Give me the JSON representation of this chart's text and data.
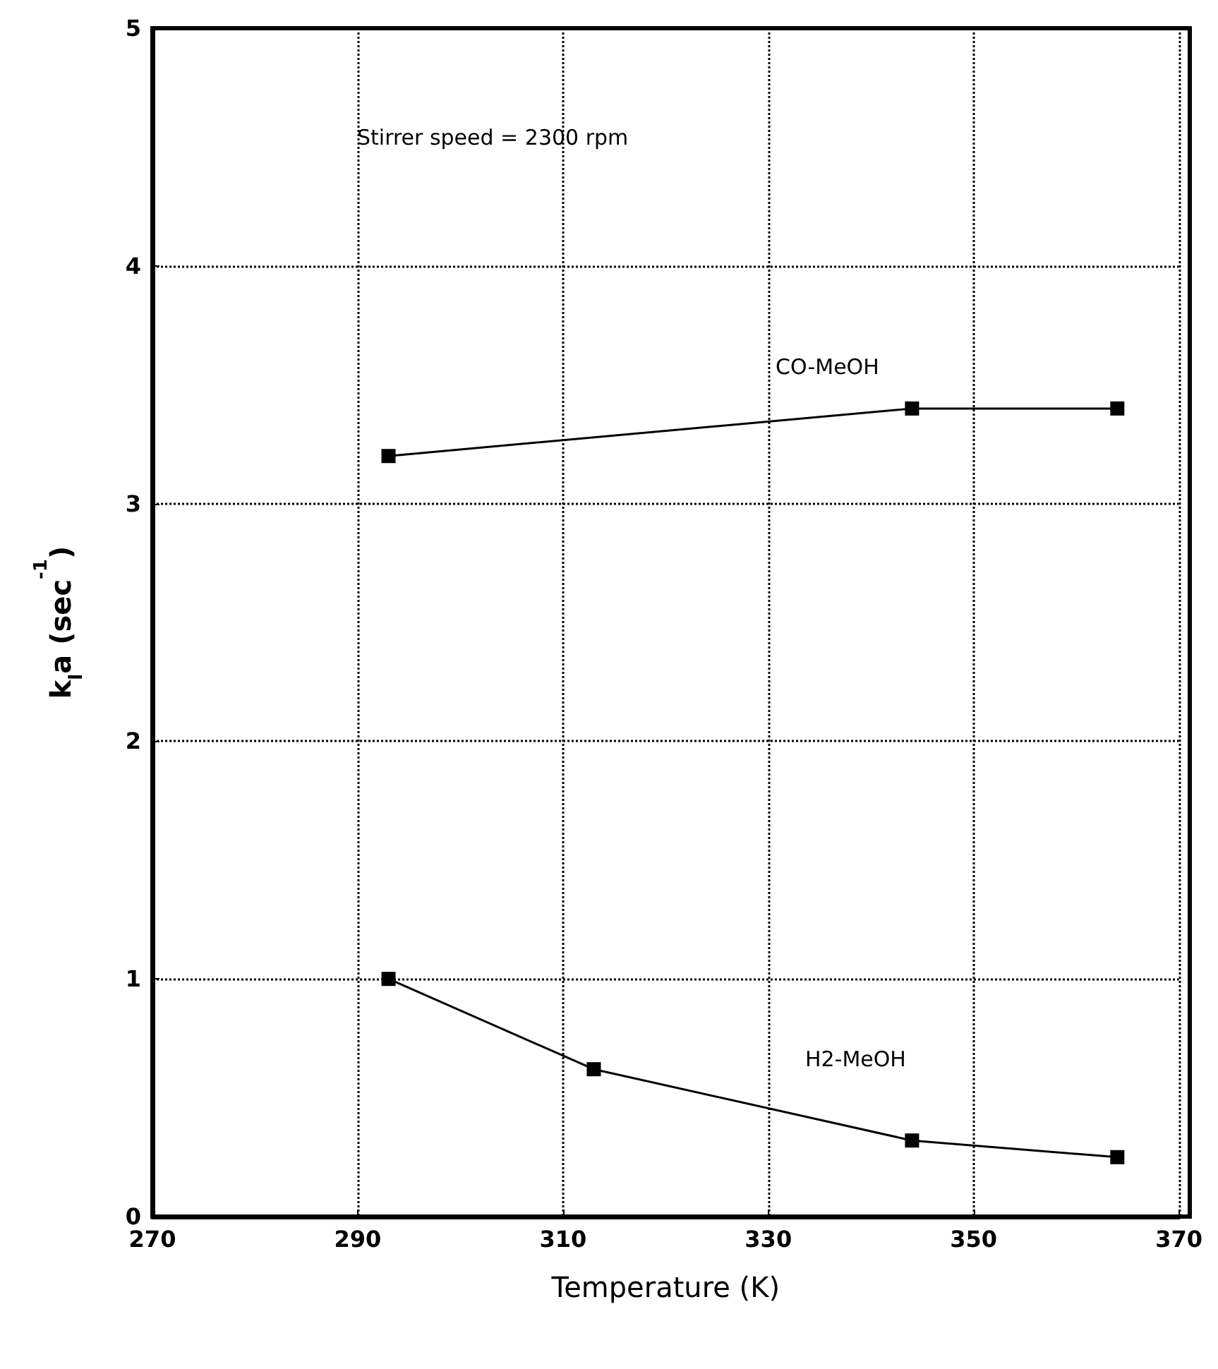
{
  "chart_data": {
    "type": "line",
    "xlabel": "Temperature (K)",
    "ylabel": "k$_{l}$a (sec$^{-1}$)",
    "annotations": [
      "Stirrer speed = 2300 rpm"
    ],
    "series": [
      {
        "name": "CO-MeOH",
        "color": "#000000",
        "x": [
          293,
          344,
          364
        ],
        "values": [
          3.2,
          3.4,
          3.4
        ]
      },
      {
        "name": "H2-MeOH",
        "color": "#000000",
        "x": [
          293,
          313,
          344,
          364
        ],
        "values": [
          1.0,
          0.62,
          0.32,
          0.25
        ]
      }
    ],
    "xlim": [
      270,
      370
    ],
    "xticks": [
      270,
      290,
      310,
      330,
      350,
      370
    ],
    "ylim": [
      0,
      5
    ],
    "yticks": [
      0,
      1,
      2,
      3,
      4,
      5
    ],
    "grid": true,
    "marker": "square",
    "line_style": "solid"
  }
}
